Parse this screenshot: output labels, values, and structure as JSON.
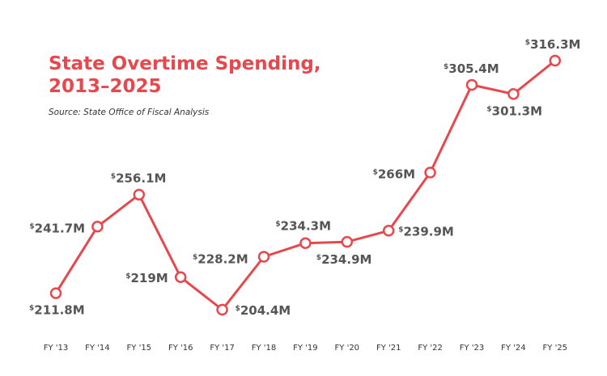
{
  "chart_data": {
    "type": "line",
    "title": [
      "State Overtime Spending,",
      "2013–2025"
    ],
    "subtitle": "Source: State Office of Fiscal Analysis",
    "categories": [
      "FY '13",
      "FY '14",
      "FY '15",
      "FY '16",
      "FY '17",
      "FY '18",
      "FY '19",
      "FY '20",
      "FY '21",
      "FY '22",
      "FY '23",
      "FY '24",
      "FY '25"
    ],
    "values": [
      211.8,
      241.7,
      256.1,
      219,
      204.4,
      228.2,
      234.3,
      234.9,
      239.9,
      266,
      305.4,
      301.3,
      316.3
    ],
    "data_labels": [
      "211.8M",
      "241.7M",
      "256.1M",
      "219M",
      "204.4M",
      "228.2M",
      "234.3M",
      "234.9M",
      "239.9M",
      "266M",
      "305.4M",
      "301.3M",
      "316.3M"
    ],
    "currency_symbol": "$",
    "xlabel": "",
    "ylabel": "",
    "grid": false,
    "legend": "none",
    "colors": {
      "line": "#e8484d",
      "marker_fill": "#ffffff",
      "title": "#e8484d",
      "label": "#555555",
      "tick": "#333333"
    }
  }
}
